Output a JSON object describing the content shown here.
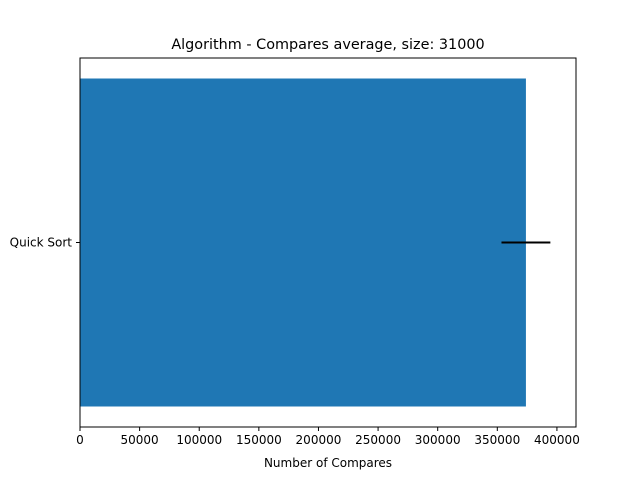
{
  "chart_data": {
    "type": "bar",
    "orientation": "horizontal",
    "title": "Algorithm - Compares average, size: 31000",
    "xlabel": "Number of Compares",
    "ylabel": "",
    "categories": [
      "Quick Sort"
    ],
    "values": [
      374000
    ],
    "error": [
      20500
    ],
    "xlim": [
      0,
      416000
    ],
    "xticks": [
      0,
      50000,
      100000,
      150000,
      200000,
      250000,
      300000,
      350000,
      400000
    ],
    "xtick_labels": [
      "0",
      "50000",
      "100000",
      "150000",
      "200000",
      "250000",
      "300000",
      "350000",
      "400000"
    ],
    "bar_color": "#1f77b4",
    "error_color": "#000000",
    "grid": false,
    "legend": "none"
  }
}
